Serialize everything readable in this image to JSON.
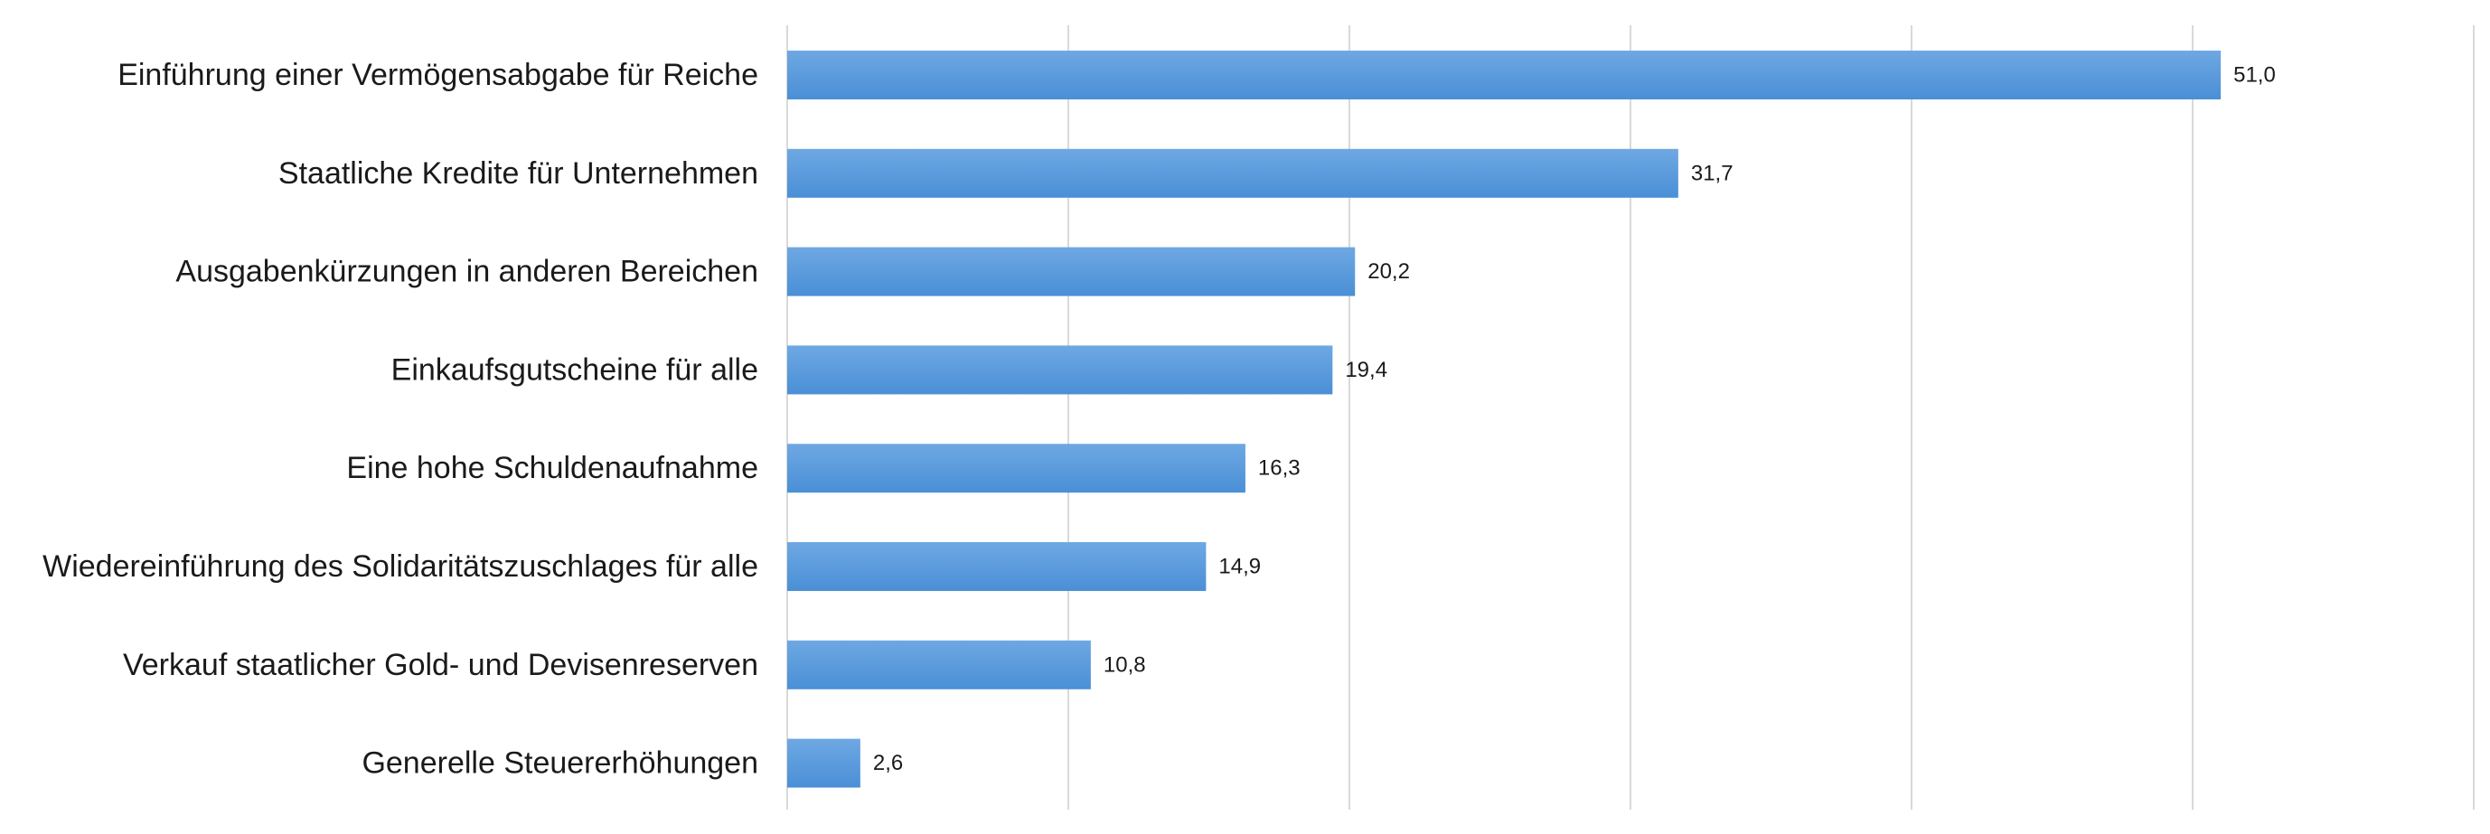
{
  "chart_data": {
    "type": "bar",
    "orientation": "horizontal",
    "categories": [
      "Einführung einer Vermögensabgabe für Reiche",
      "Staatliche Kredite für Unternehmen",
      "Ausgabenkürzungen in anderen Bereichen",
      "Einkaufsgutscheine für alle",
      "Eine hohe Schuldenaufnahme",
      "Wiedereinführung des Solidaritätszuschlages für alle",
      "Verkauf staatlicher Gold- und Devisenreserven",
      "Generelle Steuererhöhungen"
    ],
    "values": [
      51.0,
      31.7,
      20.2,
      19.4,
      16.3,
      14.9,
      10.8,
      2.6
    ],
    "value_labels": [
      "51,0",
      "31,7",
      "20,2",
      "19,4",
      "16,3",
      "14,9",
      "10,8",
      "2,6"
    ],
    "xlim": [
      0,
      60
    ],
    "grid_step": 10,
    "grid": true,
    "legend": "none",
    "bar_color": "#4a8fd6",
    "bar_color_light": "#6ea8e3"
  }
}
